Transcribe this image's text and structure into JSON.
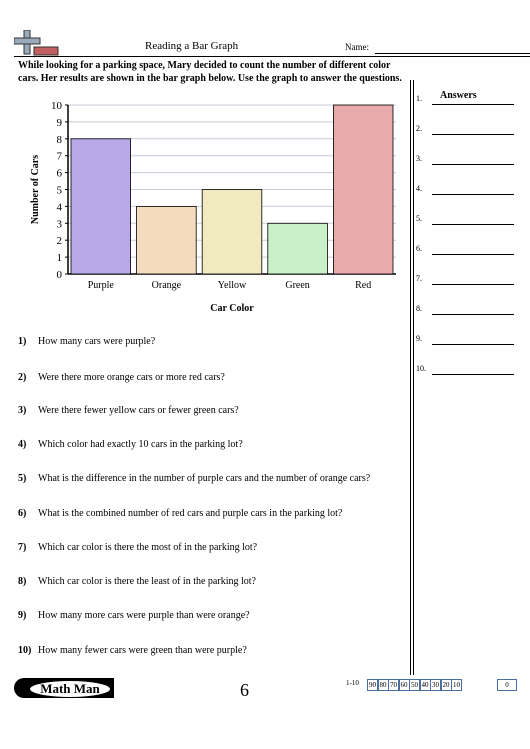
{
  "header": {
    "title": "Reading a Bar Graph",
    "name_label": "Name:"
  },
  "intro": "While looking for a parking space, Mary decided to count the number of different color cars. Her results are shown in the bar graph below. Use the graph to answer the questions.",
  "chart_data": {
    "type": "bar",
    "categories": [
      "Purple",
      "Orange",
      "Yellow",
      "Green",
      "Red"
    ],
    "values": [
      8,
      4,
      5,
      3,
      10
    ],
    "colors": [
      "#b9a9e9",
      "#f2dcbd",
      "#f1e9bf",
      "#c9f1c9",
      "#e8aaab"
    ],
    "x_label": "Car Color",
    "y_label": "Number of Cars",
    "ylim": [
      0,
      10
    ],
    "yticks": [
      0,
      1,
      2,
      3,
      4,
      5,
      6,
      7,
      8,
      9,
      10
    ],
    "grid": true
  },
  "answers": {
    "title": "Answers",
    "numbers": [
      "1.",
      "2.",
      "3.",
      "4.",
      "5.",
      "6.",
      "7.",
      "8.",
      "9.",
      "10."
    ]
  },
  "questions": [
    {
      "number": "1)",
      "text": "How many cars were purple?"
    },
    {
      "number": "2)",
      "text": "Were there more orange cars or more red cars?"
    },
    {
      "number": "3)",
      "text": "Were there fewer yellow cars or fewer green cars?"
    },
    {
      "number": "4)",
      "text": "Which color had exactly 10 cars in the parking lot?"
    },
    {
      "number": "5)",
      "text": "What is the difference in the number of purple cars and the number of orange cars?"
    },
    {
      "number": "6)",
      "text": "What is the combined number of red cars and purple cars in the parking lot?"
    },
    {
      "number": "7)",
      "text": "Which car color is there the most of in the parking lot?"
    },
    {
      "number": "8)",
      "text": "Which car color is there the least of in the parking lot?"
    },
    {
      "number": "9)",
      "text": "How many more cars were purple than were orange?"
    },
    {
      "number": "10)",
      "text": "How many fewer cars were green than were purple?"
    }
  ],
  "footer": {
    "brand": "Math Man",
    "page": "6",
    "score_range": "1-10",
    "scores": [
      "90",
      "80",
      "70",
      "60",
      "50",
      "40",
      "30",
      "20",
      "10",
      "0"
    ]
  }
}
